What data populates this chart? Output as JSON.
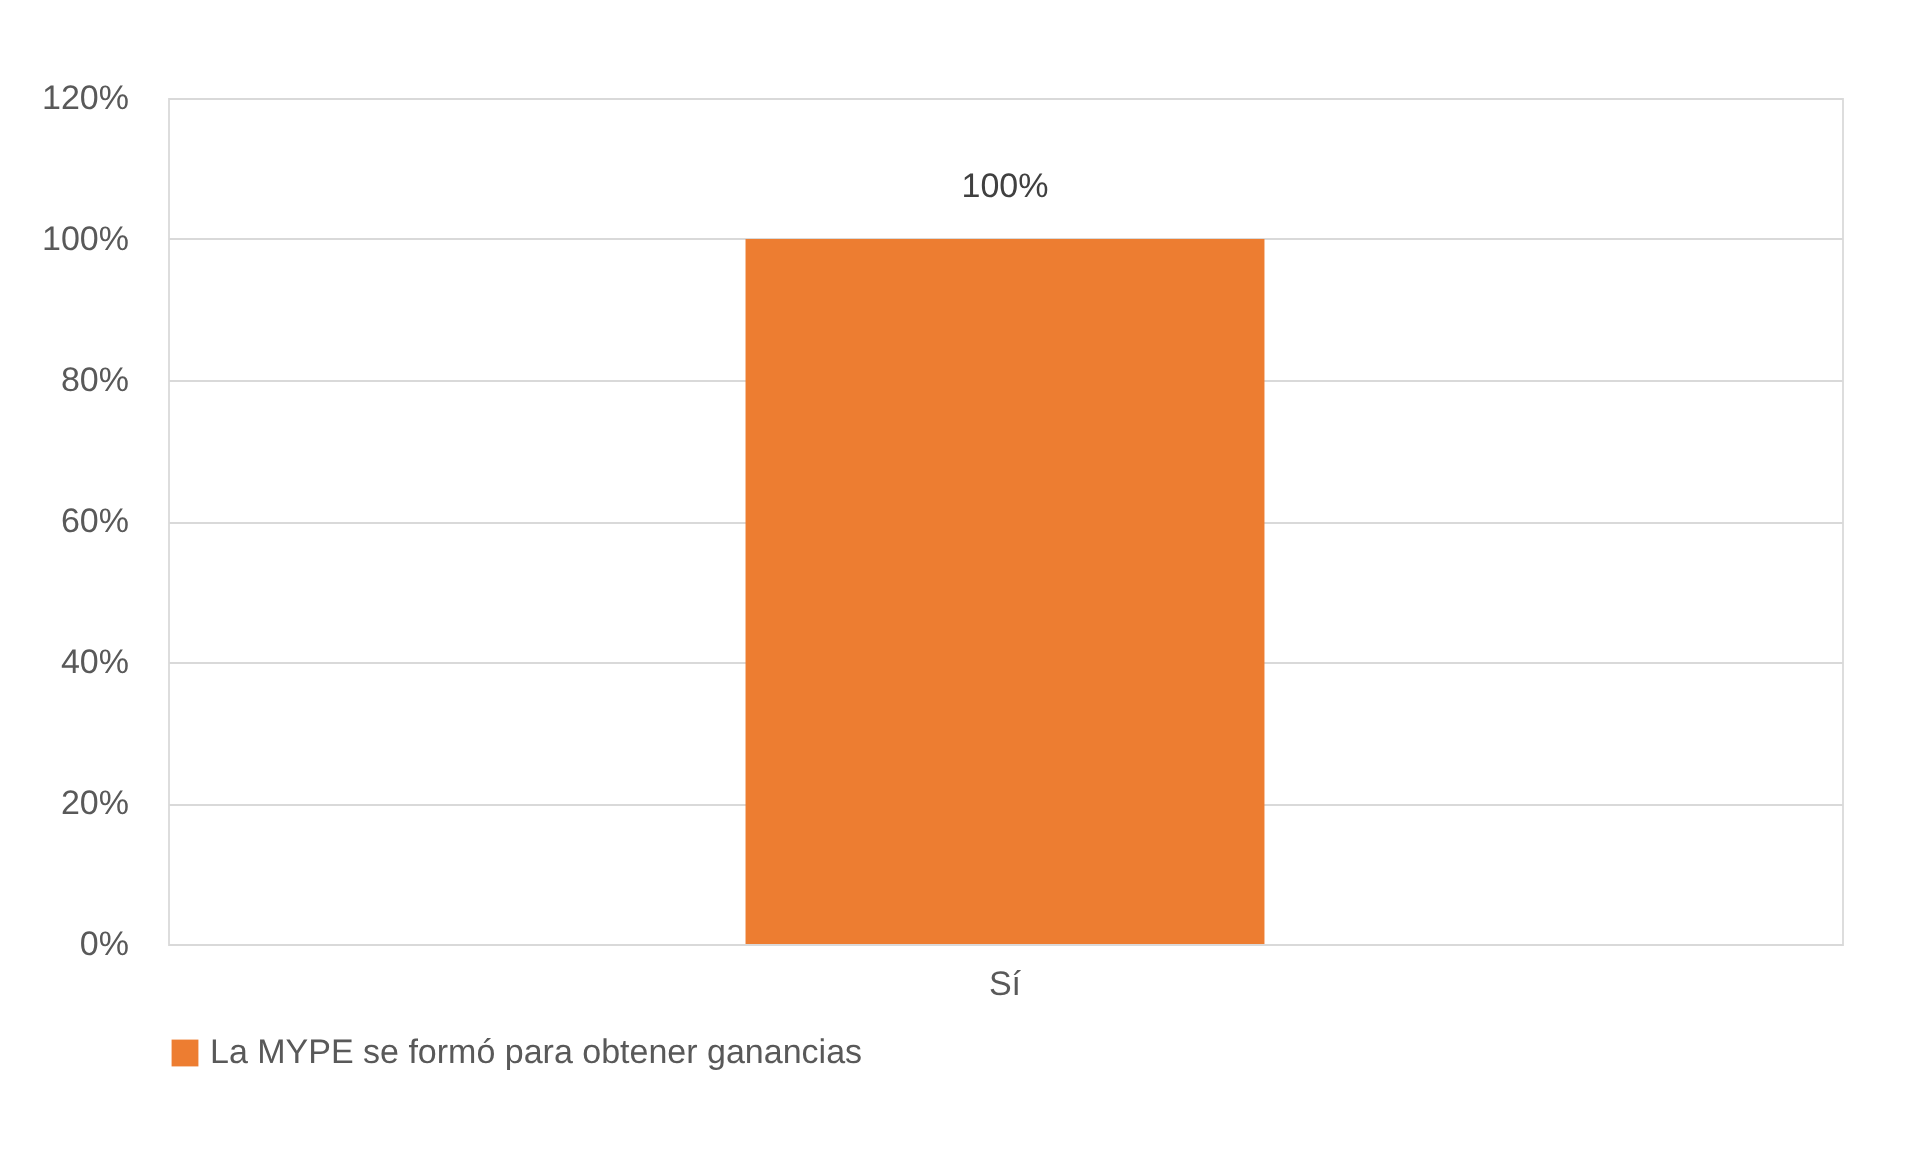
{
  "chart_data": {
    "type": "bar",
    "categories": [
      "Sí"
    ],
    "series": [
      {
        "name": "La MYPE se formó para obtener ganancias",
        "color": "#ed7d31",
        "values": [
          100
        ],
        "value_labels": [
          "100%"
        ]
      }
    ],
    "ylim": [
      0,
      120
    ],
    "yticks": [
      {
        "value": 0,
        "label": "0%"
      },
      {
        "value": 20,
        "label": "20%"
      },
      {
        "value": 40,
        "label": "40%"
      },
      {
        "value": 60,
        "label": "60%"
      },
      {
        "value": 80,
        "label": "80%"
      },
      {
        "value": 100,
        "label": "100%"
      },
      {
        "value": 120,
        "label": "120%"
      }
    ],
    "grid": "y",
    "legend": "bottom"
  }
}
